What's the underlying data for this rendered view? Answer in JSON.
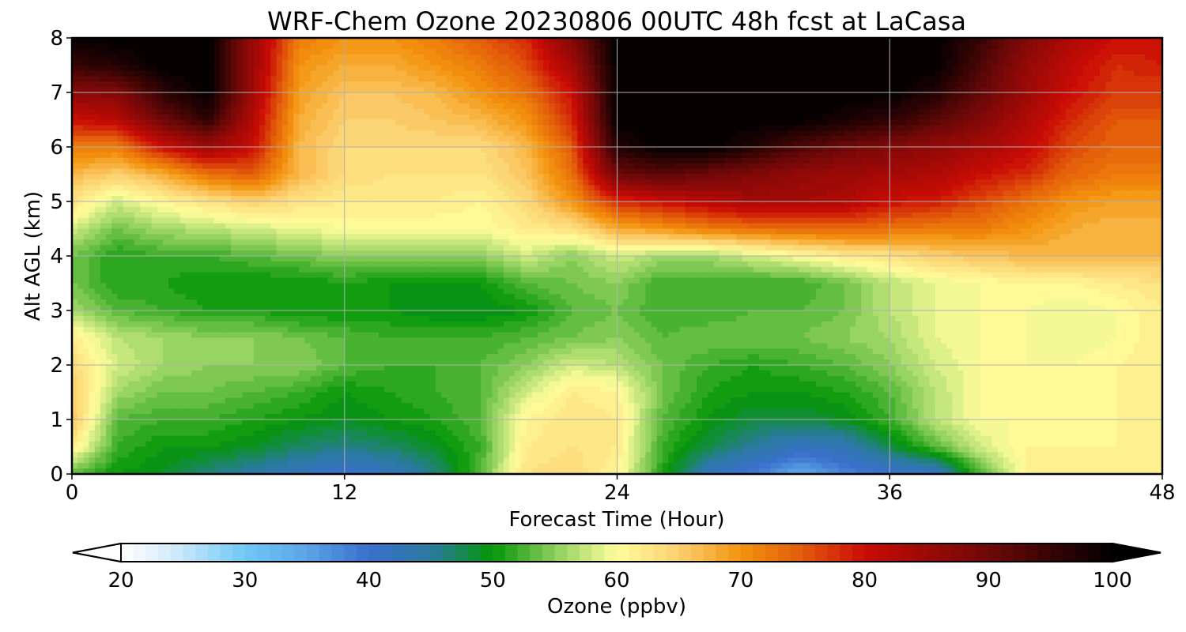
{
  "chart_data": {
    "type": "heatmap",
    "subtype": "filled-contour",
    "title": "WRF-Chem Ozone  20230806 00UTC 48h fcst at LaCasa",
    "xlabel": "Forecast Time (Hour)",
    "ylabel": "Alt AGL (km)",
    "xlim": [
      0,
      48
    ],
    "ylim": [
      0,
      8
    ],
    "xticks": [
      0,
      12,
      24,
      36,
      48
    ],
    "yticks": [
      0,
      1,
      2,
      3,
      4,
      5,
      6,
      7,
      8
    ],
    "grid": true,
    "z_label": "Ozone  (ppbv)",
    "z_range": [
      20,
      100
    ],
    "z_levels_step": 1,
    "colorbar": {
      "position": "bottom",
      "extend": "both",
      "ticks": [
        20,
        30,
        40,
        50,
        60,
        70,
        80,
        90,
        100
      ],
      "label": "Ozone  (ppbv)",
      "color_stops": [
        {
          "value": 20,
          "color": "#ffffff"
        },
        {
          "value": 24,
          "color": "#d6ecfa"
        },
        {
          "value": 30,
          "color": "#6ec9f7"
        },
        {
          "value": 35,
          "color": "#5ba4e6"
        },
        {
          "value": 40,
          "color": "#3a6fcc"
        },
        {
          "value": 45,
          "color": "#2a7aa0"
        },
        {
          "value": 50,
          "color": "#049606"
        },
        {
          "value": 55,
          "color": "#8dcf5c"
        },
        {
          "value": 60,
          "color": "#fffe9c"
        },
        {
          "value": 65,
          "color": "#fcd070"
        },
        {
          "value": 70,
          "color": "#f4930e"
        },
        {
          "value": 75,
          "color": "#e25a0a"
        },
        {
          "value": 80,
          "color": "#c90b05"
        },
        {
          "value": 90,
          "color": "#6e0808"
        },
        {
          "value": 100,
          "color": "#000000"
        }
      ]
    },
    "x": [
      0,
      2,
      4,
      6,
      8,
      10,
      12,
      14,
      16,
      18,
      20,
      22,
      24,
      26,
      28,
      30,
      32,
      34,
      36,
      38,
      40,
      42,
      44,
      46,
      48
    ],
    "y": [
      0,
      0.5,
      1,
      1.5,
      2,
      2.5,
      3,
      3.5,
      4,
      4.5,
      5,
      5.5,
      6,
      6.5,
      7,
      7.5,
      8
    ],
    "z": [
      [
        53,
        50,
        49,
        46,
        44,
        42,
        40,
        42,
        46,
        53,
        63,
        64,
        61,
        51,
        42,
        39,
        34,
        38,
        40,
        41,
        53,
        61,
        62,
        62,
        62
      ],
      [
        62,
        52,
        50,
        50,
        49,
        47,
        46,
        47,
        49,
        52,
        62,
        63,
        62,
        52,
        48,
        45,
        42,
        43,
        48,
        53,
        58,
        61,
        61,
        61,
        62
      ],
      [
        66,
        53,
        52,
        52,
        51,
        50,
        49,
        50,
        51,
        53,
        61,
        63,
        62,
        53,
        50,
        48,
        48,
        49,
        52,
        57,
        60,
        60,
        60,
        61,
        62
      ],
      [
        65,
        56,
        54,
        54,
        53,
        52,
        50,
        51,
        52,
        53,
        58,
        62,
        61,
        54,
        51,
        50,
        50,
        51,
        53,
        57,
        60,
        60,
        60,
        61,
        62
      ],
      [
        64,
        58,
        56,
        55,
        55,
        55,
        53,
        52,
        52,
        53,
        55,
        58,
        57,
        54,
        52,
        51,
        52,
        53,
        55,
        58,
        60,
        60,
        60,
        61,
        62
      ],
      [
        62,
        57,
        56,
        55,
        55,
        54,
        53,
        52,
        52,
        52,
        53,
        54,
        55,
        53,
        54,
        54,
        54,
        55,
        56,
        59,
        60,
        60,
        59,
        60,
        62
      ],
      [
        56,
        53,
        52,
        51,
        51,
        50,
        50,
        50,
        49,
        49,
        50,
        53,
        54,
        52,
        52,
        53,
        53,
        54,
        57,
        59,
        60,
        60,
        59,
        60,
        62
      ],
      [
        54,
        51,
        51,
        50,
        50,
        50,
        51,
        50,
        50,
        50,
        53,
        54,
        55,
        52,
        52,
        52,
        52,
        54,
        57,
        59,
        60,
        61,
        61,
        62,
        63
      ],
      [
        54,
        51,
        52,
        52,
        53,
        54,
        55,
        55,
        55,
        55,
        58,
        55,
        58,
        56,
        56,
        58,
        60,
        62,
        63,
        65,
        66,
        67,
        67,
        67,
        67
      ],
      [
        58,
        54,
        56,
        57,
        58,
        59,
        60,
        60,
        60,
        60,
        62,
        63,
        68,
        70,
        72,
        73,
        74,
        74,
        73,
        72,
        72,
        70,
        68,
        67,
        67
      ],
      [
        63,
        58,
        61,
        63,
        65,
        63,
        62,
        62,
        62,
        61,
        64,
        70,
        78,
        80,
        82,
        84,
        84,
        83,
        80,
        79,
        76,
        73,
        70,
        69,
        69
      ],
      [
        67,
        65,
        68,
        73,
        75,
        67,
        64,
        63,
        63,
        63,
        66,
        73,
        90,
        92,
        90,
        88,
        86,
        85,
        84,
        83,
        80,
        78,
        74,
        72,
        72
      ],
      [
        72,
        72,
        80,
        85,
        80,
        67,
        64,
        64,
        64,
        64,
        67,
        75,
        97,
        100,
        100,
        97,
        93,
        90,
        88,
        86,
        84,
        81,
        76,
        74,
        74
      ],
      [
        80,
        82,
        90,
        96,
        82,
        68,
        65,
        65,
        66,
        67,
        70,
        78,
        100,
        100,
        100,
        100,
        100,
        98,
        96,
        92,
        88,
        83,
        78,
        75,
        75
      ],
      [
        87,
        88,
        96,
        100,
        84,
        69,
        66,
        66,
        67,
        70,
        73,
        80,
        100,
        100,
        100,
        100,
        100,
        100,
        100,
        97,
        91,
        85,
        80,
        77,
        77
      ],
      [
        95,
        97,
        100,
        100,
        85,
        70,
        68,
        68,
        70,
        72,
        76,
        84,
        100,
        100,
        100,
        100,
        100,
        100,
        100,
        100,
        93,
        86,
        81,
        78,
        79
      ],
      [
        100,
        100,
        100,
        100,
        85,
        72,
        70,
        70,
        72,
        75,
        78,
        88,
        100,
        100,
        100,
        100,
        100,
        100,
        100,
        100,
        95,
        88,
        83,
        80,
        80
      ]
    ]
  }
}
